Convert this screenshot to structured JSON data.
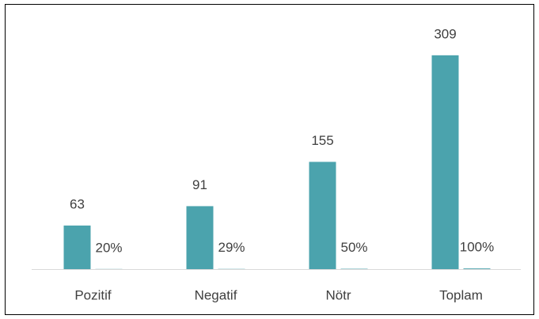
{
  "chart_data": {
    "type": "bar",
    "categories": [
      "Pozitif",
      "Negatif",
      "Nötr",
      "Toplam"
    ],
    "series": [
      {
        "values": [
          63,
          91,
          155,
          309
        ],
        "color": "#4ba3ad"
      },
      {
        "values": [
          0.2,
          0.29,
          0.5,
          1
        ],
        "value_labels": [
          "20%",
          "29%",
          "50%",
          "100%"
        ],
        "color": "#4ba3ad"
      }
    ],
    "ylim": [
      0,
      350
    ]
  }
}
